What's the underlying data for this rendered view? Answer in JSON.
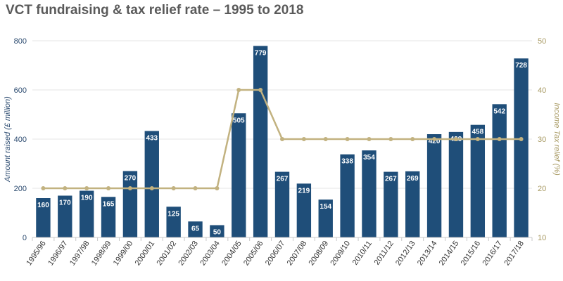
{
  "chart_data": {
    "type": "bar",
    "title": "VCT fundraising & tax relief rate – 1995 to 2018",
    "xlabel": "",
    "ylabel": "Amount raised (£ million)",
    "y2label": "Income Tax relief (%)",
    "ylim": [
      0,
      800
    ],
    "y2lim": [
      10,
      50
    ],
    "yticks": [
      "0",
      "200",
      "400",
      "600",
      "800"
    ],
    "y2ticks": [
      "10",
      "20",
      "30",
      "40",
      "50"
    ],
    "grid": true,
    "categories": [
      "1995/96",
      "1996/97",
      "1997/98",
      "1998/99",
      "1999/00",
      "2000/01",
      "2001/02",
      "2002/03",
      "2003/04",
      "2004/05",
      "2005/06",
      "2006/07",
      "2007/08",
      "2008/09",
      "2009/10",
      "2010/11",
      "2011/12",
      "2012/13",
      "2013/14",
      "2014/15",
      "2015/16",
      "2016/17",
      "2017/18"
    ],
    "series": [
      {
        "type": "bar",
        "axis": "left",
        "color": "#1f4e79",
        "values": [
          160,
          170,
          190,
          165,
          270,
          433,
          125,
          65,
          50,
          505,
          779,
          267,
          219,
          154,
          338,
          354,
          267,
          269,
          420,
          429,
          458,
          542,
          728
        ]
      },
      {
        "type": "line",
        "axis": "right",
        "color": "#c2b280",
        "values": [
          20,
          20,
          20,
          20,
          20,
          20,
          20,
          20,
          20,
          40,
          40,
          30,
          30,
          30,
          30,
          30,
          30,
          30,
          30,
          30,
          30,
          30,
          30
        ]
      }
    ],
    "colors": {
      "bar": "#1f4e79",
      "line": "#c2b280",
      "left_axis_text": "#2b4a6f",
      "right_axis_text": "#a89a63",
      "grid": "#e6e6e6"
    }
  }
}
